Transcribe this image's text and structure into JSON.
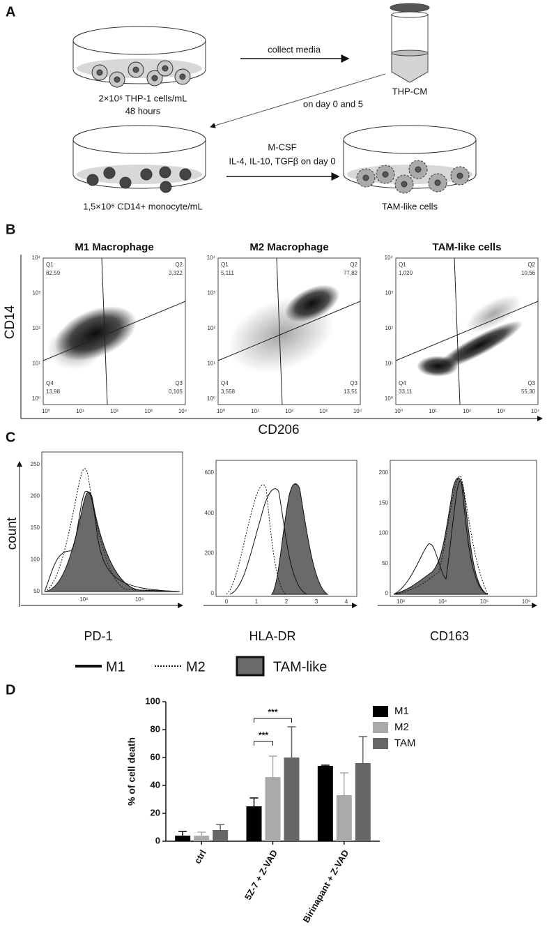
{
  "panel_labels": [
    "A",
    "B",
    "C",
    "D"
  ],
  "panel_a": {
    "seed_label": "2×10⁵ THP-1 cells/mL",
    "duration": "48 hours",
    "arrow_1": "collect media",
    "tube_label": "THP-CM",
    "arrow_2": "on day 0 and 5",
    "monocyte_label": "1,5×10⁶ CD14+ monocyte/mL",
    "arrow_3_line1": "M-CSF",
    "arrow_3_line2": "IL-4, IL-10, TGFβ on day 0",
    "result_label": "TAM-like cells"
  },
  "panel_b": {
    "y_label": "CD14",
    "x_label": "CD206",
    "ticks": [
      "10⁰",
      "10¹",
      "10²",
      "10³",
      "10⁴"
    ],
    "plots": [
      {
        "title": "M1 Macrophage",
        "quadrants": [
          {
            "name": "Q1",
            "value": "82,59"
          },
          {
            "name": "Q2",
            "value": "3,322"
          },
          {
            "name": "Q3",
            "value": "0,105"
          },
          {
            "name": "Q4",
            "value": "13,98"
          }
        ]
      },
      {
        "title": "M2 Macrophage",
        "quadrants": [
          {
            "name": "Q1",
            "value": "5,111"
          },
          {
            "name": "Q2",
            "value": "77,82"
          },
          {
            "name": "Q3",
            "value": "13,51"
          },
          {
            "name": "Q4",
            "value": "3,558"
          }
        ]
      },
      {
        "title": "TAM-like cells",
        "quadrants": [
          {
            "name": "Q1",
            "value": "1,020"
          },
          {
            "name": "Q2",
            "value": "10,56"
          },
          {
            "name": "Q3",
            "value": "55,30"
          },
          {
            "name": "Q4",
            "value": "33,11"
          }
        ]
      }
    ]
  },
  "panel_c": {
    "y_label": "count",
    "plots": [
      {
        "x_label": "PD-1",
        "yticks": [
          "250",
          "200",
          "150",
          "100",
          "50"
        ],
        "xticks": [
          "10³",
          "10⁴"
        ]
      },
      {
        "x_label": "HLA-DR",
        "yticks": [
          "600",
          "400",
          "200",
          "0"
        ],
        "xticks": [
          "0",
          "1",
          "2",
          "3",
          "4"
        ]
      },
      {
        "x_label": "CD163",
        "yticks": [
          "200",
          "150",
          "100",
          "50",
          "0"
        ],
        "xticks": [
          "10³",
          "10⁴",
          "10⁵",
          "10⁶"
        ]
      }
    ],
    "legend": [
      "M1",
      "M2",
      "TAM-like"
    ]
  },
  "chart_data": {
    "type": "bar",
    "y_label": "% of cell death",
    "categories": [
      "ctrl",
      "5Z-7 + Z-VAD",
      "Birinapant + Z-VAD"
    ],
    "series": [
      {
        "name": "M1",
        "color": "#000000",
        "values": [
          4,
          25,
          54
        ],
        "errors": [
          3,
          6,
          0.5
        ]
      },
      {
        "name": "M2",
        "color": "#aaaaaa",
        "values": [
          4,
          46,
          33
        ],
        "errors": [
          2.5,
          15,
          16
        ]
      },
      {
        "name": "TAM",
        "color": "#666666",
        "values": [
          8,
          60,
          56
        ],
        "errors": [
          4,
          22,
          19
        ]
      }
    ],
    "ylim": [
      0,
      100
    ],
    "yticks": [
      0,
      20,
      40,
      60,
      80,
      100
    ],
    "annotations": [
      "***",
      "***"
    ]
  }
}
